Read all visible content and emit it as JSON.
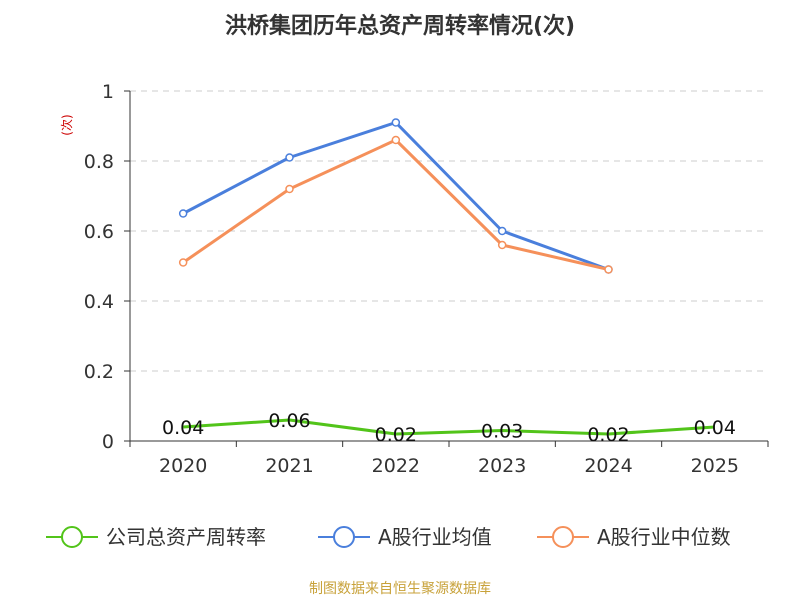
{
  "chart_data": {
    "type": "line",
    "title": "洪桥集团历年总资产周转率情况(次)",
    "ylabel": "(次)",
    "xlabel": "",
    "ylim": [
      0,
      1
    ],
    "yticks": [
      "0",
      "0.2",
      "0.4",
      "0.6",
      "0.8",
      "1"
    ],
    "ytick_values": [
      0,
      0.2,
      0.4,
      0.6,
      0.8,
      1
    ],
    "categories": [
      "2020",
      "2021",
      "2022",
      "2023",
      "2024",
      "2025"
    ],
    "grid": true,
    "series": [
      {
        "key": "company",
        "name": "公司总资产周转率",
        "color": "#52c41a",
        "values": [
          0.04,
          0.06,
          0.02,
          0.03,
          0.02,
          0.04
        ],
        "labels": [
          "0.04",
          "0.06",
          "0.02",
          "0.03",
          "0.02",
          "0.04"
        ]
      },
      {
        "key": "avg",
        "name": "A股行业均值",
        "color": "#4a7fdc",
        "values": [
          0.65,
          0.81,
          0.91,
          0.6,
          0.49,
          null
        ]
      },
      {
        "key": "median",
        "name": "A股行业中位数",
        "color": "#f5905a",
        "values": [
          0.51,
          0.72,
          0.86,
          0.56,
          0.49,
          null
        ]
      }
    ],
    "legend_position": "bottom",
    "source": "制图数据来自恒生聚源数据库",
    "colors": {
      "unit": "#cc0000",
      "source": "#c8a23a",
      "axis": "#333333",
      "grid": "#cccccc"
    }
  }
}
